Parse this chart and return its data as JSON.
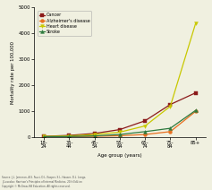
{
  "age_groups": [
    "18-\n24",
    "35-\n44",
    "45-\n54",
    "55-\n64",
    "65-\n74",
    "75-\n84",
    "85+"
  ],
  "x_positions": [
    0,
    1,
    2,
    3,
    4,
    5,
    6
  ],
  "cancer": [
    18,
    55,
    130,
    280,
    620,
    1250,
    1700
  ],
  "alzheimers": [
    3,
    8,
    18,
    40,
    90,
    200,
    980
  ],
  "heart_disease": [
    12,
    35,
    90,
    180,
    420,
    1180,
    4380
  ],
  "stroke": [
    4,
    12,
    35,
    90,
    200,
    330,
    1020
  ],
  "colors": {
    "cancer": "#8B1A1A",
    "alzheimers": "#E87020",
    "heart_disease": "#C8C800",
    "stroke": "#2E7A3E"
  },
  "marker_styles": {
    "cancer": "s",
    "alzheimers": "o",
    "heart_disease": "v",
    "stroke": "^"
  },
  "legend_labels": [
    "Cancer",
    "Alzheimer's disease",
    "Heart disease",
    "Stroke"
  ],
  "ylabel": "Mortality rate per 100,000",
  "xlabel": "Age group (years)",
  "ylim": [
    0,
    5000
  ],
  "yticks": [
    0,
    1000,
    2000,
    3000,
    4000,
    5000
  ],
  "source_text": "Source: J.L. Jameson, A.S. Fauci, D.L. Kasper, S.L. Hauser, D.L. Longo,\nJ. Loscalzo: Harrison's Principles of Internal Medicine, 20th Edition\nCopyright © McGraw-Hill Education. All rights reserved.",
  "background_color": "#f0f0e0"
}
